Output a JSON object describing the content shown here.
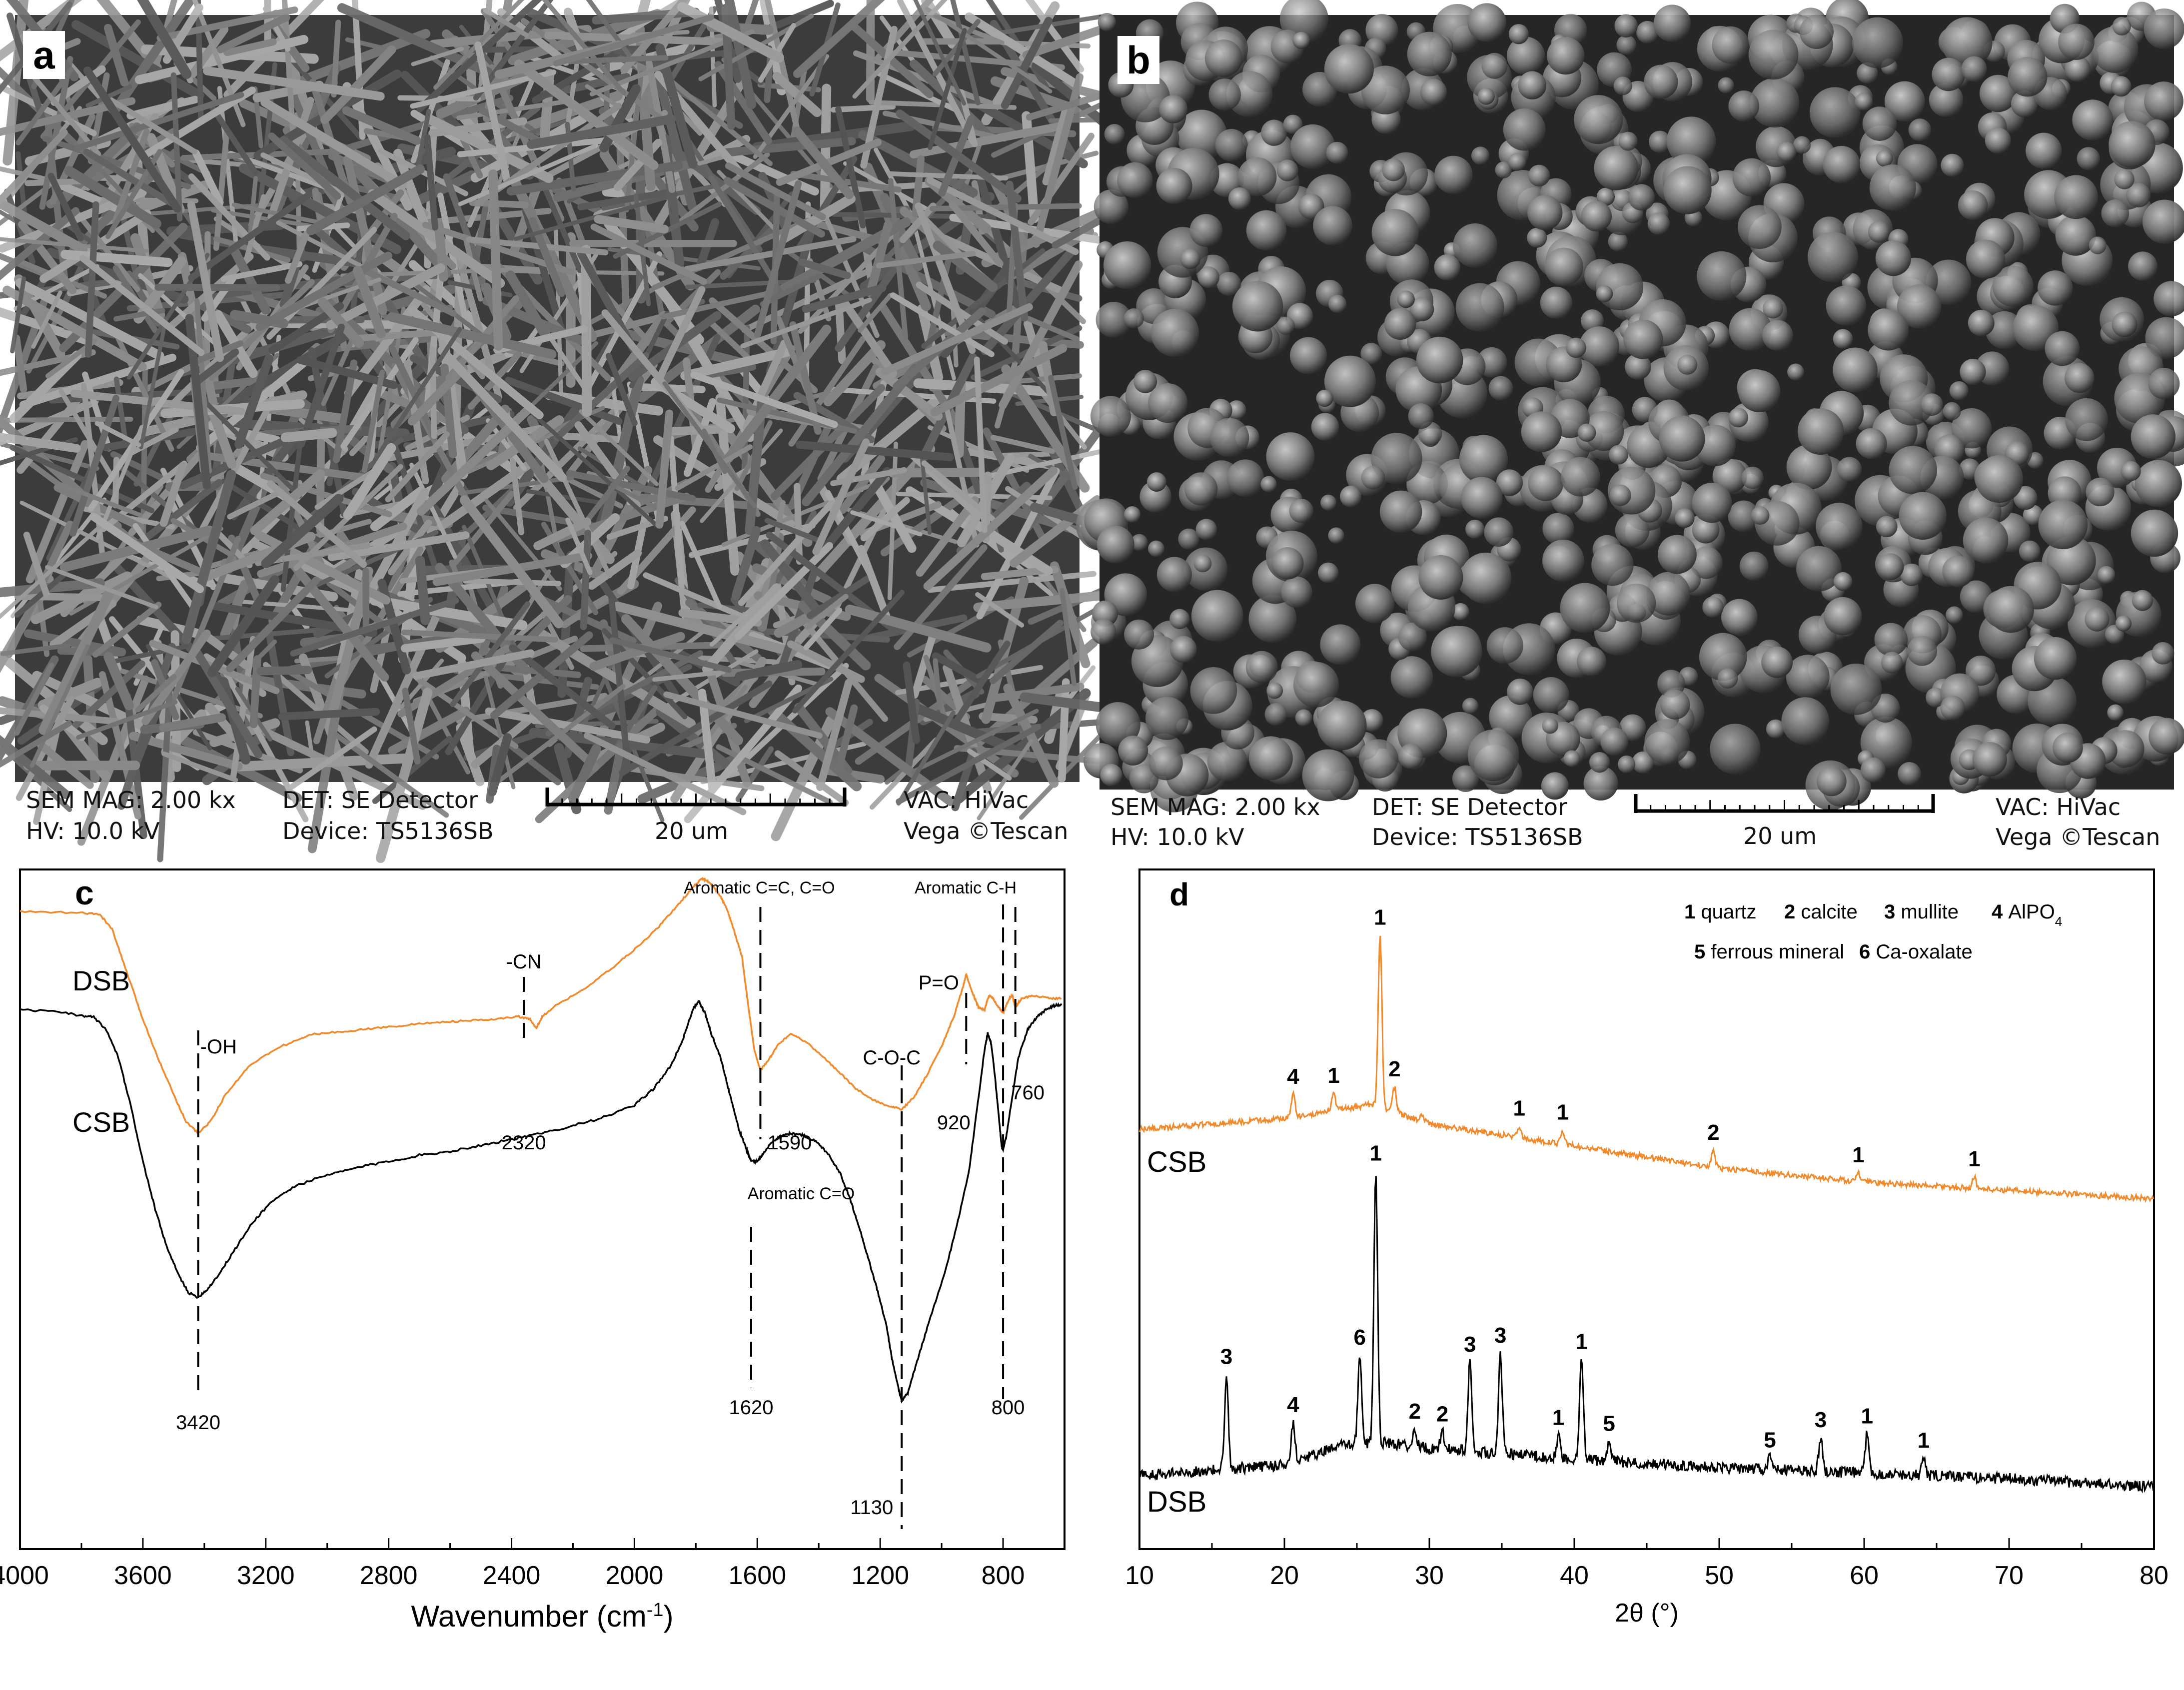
{
  "panels": {
    "a": {
      "letter": "a",
      "info": {
        "mag": "SEM MAG: 2.00 kx",
        "hv": "HV:  10.0 kV",
        "det": "DET: SE Detector",
        "device": "Device: TS5136SB",
        "scale": "20 um",
        "vac": "VAC: HiVac",
        "vega": "Vega ©Tescan"
      }
    },
    "b": {
      "letter": "b",
      "info": {
        "mag": "SEM MAG: 2.00 kx",
        "hv": "HV:  10.0 kV",
        "det": "DET: SE Detector",
        "device": "Device: TS5136SB",
        "scale": "20 um",
        "vac": "VAC: HiVac",
        "vega": "Vega ©Tescan"
      }
    },
    "c": {
      "letter": "c"
    },
    "d": {
      "letter": "d"
    }
  },
  "chart_data": [
    {
      "panel": "c",
      "type": "line",
      "title": "",
      "xlabel": "Wavenumber (cm",
      "xlabel_sup": "-1",
      "xlabel_end": ")",
      "ylabel": "",
      "xlim": [
        4000,
        600
      ],
      "x_reversed": true,
      "xticks": [
        4000,
        3600,
        3200,
        2800,
        2400,
        2000,
        1600,
        1200,
        800
      ],
      "grid": false,
      "series": [
        {
          "name": "DSB",
          "color": "#f08a2c",
          "x": [
            4000,
            3800,
            3740,
            3700,
            3650,
            3600,
            3550,
            3500,
            3460,
            3420,
            3380,
            3330,
            3250,
            3150,
            3050,
            2950,
            2850,
            2750,
            2650,
            2550,
            2450,
            2380,
            2340,
            2320,
            2300,
            2250,
            2150,
            2050,
            1980,
            1920,
            1860,
            1810,
            1780,
            1760,
            1740,
            1720,
            1700,
            1680,
            1650,
            1630,
            1610,
            1590,
            1560,
            1530,
            1490,
            1450,
            1400,
            1340,
            1280,
            1220,
            1170,
            1130,
            1090,
            1050,
            1000,
            960,
            930,
            920,
            900,
            880,
            860,
            850,
            840,
            820,
            800,
            780,
            770,
            760,
            740,
            700,
            650,
            610
          ],
          "y": [
            91,
            90.5,
            90,
            85,
            70,
            55,
            42,
            30,
            21,
            17,
            21,
            30,
            40,
            46,
            50,
            51,
            52,
            53,
            54,
            54.5,
            55,
            56,
            55,
            52,
            56,
            60,
            66,
            74,
            80,
            86,
            93,
            99,
            102,
            101,
            99,
            96,
            92,
            86,
            76,
            60,
            45,
            38,
            42,
            47,
            50,
            48,
            44,
            38,
            32,
            28,
            26,
            25,
            29,
            36,
            46,
            56,
            66,
            70,
            64,
            59,
            58,
            62,
            63,
            60,
            57,
            62,
            63,
            59,
            62,
            63,
            62,
            62
          ]
        },
        {
          "name": "CSB",
          "color": "#000000",
          "x": [
            4000,
            3900,
            3800,
            3760,
            3720,
            3680,
            3640,
            3600,
            3560,
            3520,
            3480,
            3450,
            3420,
            3390,
            3350,
            3300,
            3240,
            3180,
            3100,
            3000,
            2900,
            2800,
            2700,
            2600,
            2500,
            2400,
            2300,
            2200,
            2100,
            2000,
            1940,
            1880,
            1840,
            1810,
            1790,
            1770,
            1750,
            1720,
            1700,
            1680,
            1660,
            1640,
            1630,
            1620,
            1600,
            1580,
            1550,
            1520,
            1490,
            1450,
            1410,
            1370,
            1330,
            1300,
            1270,
            1240,
            1210,
            1180,
            1160,
            1140,
            1130,
            1110,
            1080,
            1040,
            990,
            950,
            910,
            880,
            860,
            850,
            840,
            830,
            820,
            810,
            805,
            800,
            790,
            770,
            750,
            720,
            690,
            660,
            630,
            610
          ],
          "y": [
            100,
            99.5,
            98.5,
            98,
            95,
            88,
            76,
            62,
            50,
            40,
            33,
            29,
            28,
            30,
            34,
            40,
            47,
            52,
            56,
            58.5,
            60.5,
            62,
            63.5,
            64.5,
            66,
            67.5,
            69,
            71,
            73,
            76,
            80,
            86,
            93,
            100,
            102,
            99,
            94,
            88,
            82,
            76,
            70,
            66,
            64,
            62,
            62,
            64,
            67,
            68.5,
            69,
            68.5,
            67,
            64,
            59,
            53,
            46,
            38,
            30,
            21,
            12,
            5,
            2,
            4,
            12,
            22,
            34,
            46,
            60,
            78,
            90,
            94,
            92,
            86,
            78,
            70,
            66,
            65,
            68,
            78,
            88,
            95,
            98,
            100,
            101,
            101
          ]
        }
      ],
      "series_labels": [
        {
          "text": "DSB",
          "series": "DSB"
        },
        {
          "text": "CSB",
          "series": "CSB"
        }
      ],
      "annotations": [
        {
          "text": "-OH",
          "x": 3420,
          "kind": "top"
        },
        {
          "text": "3420",
          "x": 3420,
          "kind": "bottom"
        },
        {
          "text": "-CN",
          "x": 2360,
          "kind": "top"
        },
        {
          "text": "2320",
          "x": 2360,
          "kind": "bottom"
        },
        {
          "text": "Aromatic C=C, C=O",
          "x": 1590,
          "kind": "top"
        },
        {
          "text": "1590",
          "x": 1590,
          "kind": "bottom"
        },
        {
          "text": "Aromatic C=O",
          "x": 1620,
          "kind": "top"
        },
        {
          "text": "1620",
          "x": 1620,
          "kind": "bottom"
        },
        {
          "text": "C-O-C",
          "x": 1130,
          "kind": "top"
        },
        {
          "text": "1130",
          "x": 1130,
          "kind": "bottom"
        },
        {
          "text": "P=O",
          "x": 920,
          "kind": "top"
        },
        {
          "text": "920",
          "x": 920,
          "kind": "bottom"
        },
        {
          "text": "Aromatic C-H",
          "x": 800,
          "kind": "top"
        },
        {
          "text": "800",
          "x": 800,
          "kind": "bottom"
        },
        {
          "text": "760",
          "x": 760,
          "kind": "bottom"
        }
      ]
    },
    {
      "panel": "d",
      "type": "line",
      "title": "",
      "xlabel": "2θ (°)",
      "ylabel": "",
      "xlim": [
        10,
        80
      ],
      "xticks": [
        10,
        20,
        30,
        40,
        50,
        60,
        70,
        80
      ],
      "grid": false,
      "legend": {
        "entries": [
          {
            "num": "1",
            "label": "quartz"
          },
          {
            "num": "2",
            "label": "calcite"
          },
          {
            "num": "3",
            "label": "mullite"
          },
          {
            "num": "4",
            "label": "AlPO",
            "sub": "4"
          },
          {
            "num": "5",
            "label": "ferrous mineral"
          },
          {
            "num": "6",
            "label": "Ca-oxalate"
          }
        ]
      },
      "series": [
        {
          "name": "CSB",
          "color": "#f08a2c",
          "baseline": [
            [
              10,
              68.5
            ],
            [
              20,
              70.5
            ],
            [
              26,
              73
            ],
            [
              30,
              69.5
            ],
            [
              40,
              65.5
            ],
            [
              50,
              61.5
            ],
            [
              60,
              59
            ],
            [
              70,
              57.5
            ],
            [
              80,
              56
            ]
          ],
          "peaks": [
            {
              "x": 20.6,
              "h": 4,
              "label": "4"
            },
            {
              "x": 23.4,
              "h": 3,
              "label": "1"
            },
            {
              "x": 26.6,
              "h": 31,
              "label": "1"
            },
            {
              "x": 27.6,
              "h": 4.5,
              "label": "2"
            },
            {
              "x": 29.5,
              "h": 1.5,
              "label": ""
            },
            {
              "x": 36.2,
              "h": 2,
              "label": "1"
            },
            {
              "x": 39.2,
              "h": 2.5,
              "label": "1"
            },
            {
              "x": 49.6,
              "h": 3,
              "label": "2"
            },
            {
              "x": 59.6,
              "h": 1.5,
              "label": "1"
            },
            {
              "x": 67.6,
              "h": 2,
              "label": "1"
            }
          ],
          "noise": 0.5
        },
        {
          "name": "DSB",
          "color": "#000000",
          "baseline": [
            [
              10,
              6
            ],
            [
              20,
              8
            ],
            [
              24,
              11.5
            ],
            [
              27,
              12
            ],
            [
              30,
              11
            ],
            [
              40,
              9
            ],
            [
              50,
              7.5
            ],
            [
              60,
              6.5
            ],
            [
              70,
              5.5
            ],
            [
              80,
              4
            ]
          ],
          "peaks": [
            {
              "x": 16.0,
              "h": 17,
              "label": "3"
            },
            {
              "x": 20.6,
              "h": 7,
              "label": "4"
            },
            {
              "x": 25.2,
              "h": 16,
              "label": "6"
            },
            {
              "x": 26.3,
              "h": 49,
              "label": "1"
            },
            {
              "x": 29.0,
              "h": 3,
              "label": "2"
            },
            {
              "x": 30.9,
              "h": 3,
              "label": "2"
            },
            {
              "x": 32.8,
              "h": 16,
              "label": "3"
            },
            {
              "x": 34.9,
              "h": 18,
              "label": "3"
            },
            {
              "x": 38.9,
              "h": 4,
              "label": "1"
            },
            {
              "x": 40.5,
              "h": 18,
              "label": "1"
            },
            {
              "x": 42.4,
              "h": 3.5,
              "label": "5"
            },
            {
              "x": 53.5,
              "h": 2,
              "label": "5"
            },
            {
              "x": 57.0,
              "h": 6,
              "label": "3"
            },
            {
              "x": 60.2,
              "h": 7,
              "label": "1"
            },
            {
              "x": 64.1,
              "h": 3,
              "label": "1"
            }
          ],
          "noise": 1.0
        }
      ],
      "series_labels": [
        {
          "text": "CSB",
          "series": "CSB"
        },
        {
          "text": "DSB",
          "series": "DSB"
        }
      ]
    }
  ]
}
